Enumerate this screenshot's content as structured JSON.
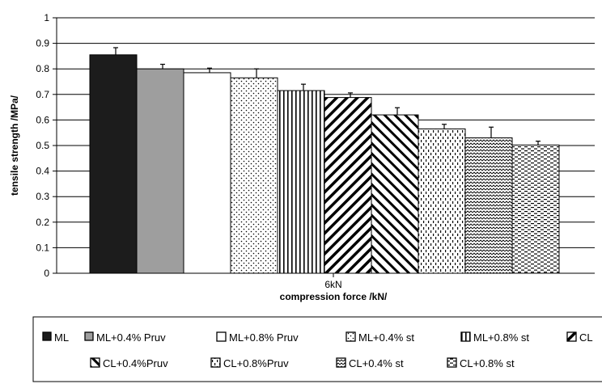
{
  "chart_data": {
    "type": "bar",
    "categories": [
      "6kN"
    ],
    "xlabel": "compression force /kN/",
    "ylabel": "tensile strength /MPa/",
    "ylim": [
      0,
      1
    ],
    "yticks": [
      "0",
      "0.1",
      "0.2",
      "0.3",
      "0.4",
      "0.5",
      "0.6",
      "0.7",
      "0.8",
      "0.9",
      "1"
    ],
    "grid": true,
    "legend_position": "bottom",
    "series": [
      {
        "name": "ML",
        "value": 0.855,
        "error": 0.028,
        "fill": "solid-black"
      },
      {
        "name": "ML+0.4% Pruv",
        "value": 0.8,
        "error": 0.018,
        "fill": "solid-gray"
      },
      {
        "name": "ML+0.8% Pruv",
        "value": 0.785,
        "error": 0.018,
        "fill": "white"
      },
      {
        "name": "ML+0.4% st",
        "value": 0.765,
        "error": 0.035,
        "fill": "dots"
      },
      {
        "name": "ML+0.8% st",
        "value": 0.715,
        "error": 0.025,
        "fill": "vertical-lines"
      },
      {
        "name": "CL",
        "value": 0.688,
        "error": 0.018,
        "fill": "diagonal-up"
      },
      {
        "name": "CL+0.4%Pruv",
        "value": 0.62,
        "error": 0.028,
        "fill": "diagonal-down"
      },
      {
        "name": "CL+0.8%Pruv",
        "value": 0.565,
        "error": 0.018,
        "fill": "short-dashes"
      },
      {
        "name": "CL+0.4% st",
        "value": 0.53,
        "error": 0.042,
        "fill": "zigzag"
      },
      {
        "name": "CL+0.8% st",
        "value": 0.502,
        "error": 0.015,
        "fill": "horizontal-dashes"
      }
    ]
  },
  "colors": {
    "black": "#1c1c1c",
    "gray": "#9e9e9e",
    "grid": "#000000"
  }
}
